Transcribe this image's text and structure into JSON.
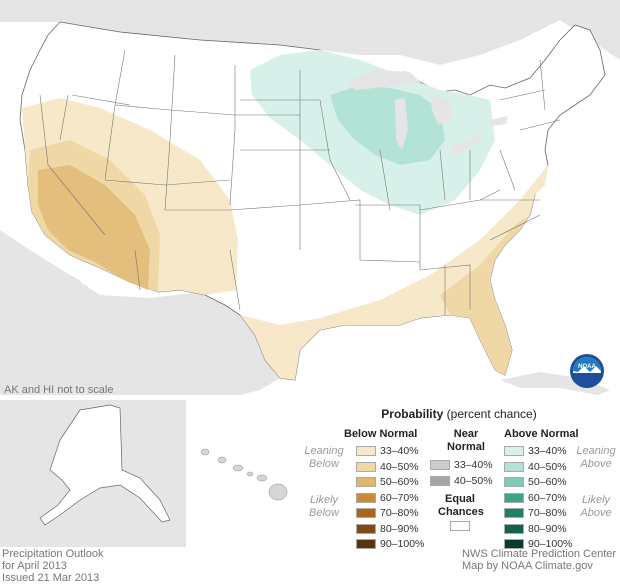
{
  "note_scale": "AK and HI not to scale",
  "legend": {
    "title_bold": "Probability",
    "title_rest": " (percent chance)",
    "below_normal": {
      "header": "Below Normal",
      "leaning": [
        "Leaning",
        "Below"
      ],
      "likely": [
        "Likely",
        "Below"
      ],
      "items": [
        {
          "label": "33–40%",
          "color": "#f6e8c8"
        },
        {
          "label": "40–50%",
          "color": "#efd8a6"
        },
        {
          "label": "50–60%",
          "color": "#e0b66d"
        },
        {
          "label": "60–70%",
          "color": "#c98b35"
        },
        {
          "label": "70–80%",
          "color": "#a8661d"
        },
        {
          "label": "80–90%",
          "color": "#7f4a14"
        },
        {
          "label": "90–100%",
          "color": "#5a320b"
        }
      ]
    },
    "near_normal": {
      "header": [
        "Near",
        "Normal"
      ],
      "items": [
        {
          "label": "33–40%",
          "color": "#cccccc"
        },
        {
          "label": "40–50%",
          "color": "#a6a6a6"
        }
      ],
      "equal": [
        "Equal",
        "Chances"
      ],
      "equal_color": "#ffffff"
    },
    "above_normal": {
      "header": "Above Normal",
      "leaning": [
        "Leaning",
        "Above"
      ],
      "likely": [
        "Likely",
        "Above"
      ],
      "items": [
        {
          "label": "33–40%",
          "color": "#d7f0ea"
        },
        {
          "label": "40–50%",
          "color": "#b3e2d6"
        },
        {
          "label": "50–60%",
          "color": "#7ecbb7"
        },
        {
          "label": "60–70%",
          "color": "#3da48a"
        },
        {
          "label": "70–80%",
          "color": "#1f8068"
        },
        {
          "label": "80–90%",
          "color": "#11634f"
        },
        {
          "label": "90–100%",
          "color": "#073d30"
        }
      ]
    }
  },
  "footer_left": [
    "Precipitation Outlook",
    "for April 2013",
    "Issued 21 Mar 2013"
  ],
  "footer_right": [
    "NWS Climate Prediction Center",
    "Map by NOAA Climate.gov"
  ],
  "logo_text": "NOAA",
  "map_colors": {
    "land": "#e5e5e5",
    "conus": "#ffffff",
    "border": "#555555",
    "below_lean_33": "#f6e8c8",
    "below_lean_40": "#efd8a6",
    "below_likely_50": "#e0b66d",
    "above_lean_33": "#d7f0ea",
    "above_lean_40": "#b3e2d6"
  }
}
